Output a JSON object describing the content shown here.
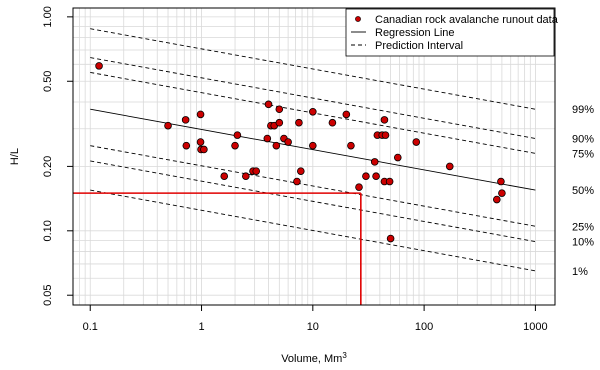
{
  "chart_data": {
    "type": "scatter",
    "title": "",
    "xlabel": "Volume, Mm",
    "xlabel_superscript": "3",
    "ylabel": "H/L",
    "xscale": "log",
    "yscale": "log",
    "xlim": [
      0.07,
      1500
    ],
    "ylim": [
      0.045,
      1.1
    ],
    "x_ticks": [
      0.1,
      1,
      10,
      100,
      1000
    ],
    "x_tick_labels": [
      "0.1",
      "1",
      "10",
      "100",
      "1000"
    ],
    "y_ticks": [
      0.05,
      0.1,
      0.2,
      0.5,
      1.0
    ],
    "y_tick_labels": [
      "0.05",
      "0.10",
      "0.20",
      "0.50",
      "1.00"
    ],
    "grid": true,
    "legend_position": "top-right",
    "legend": [
      {
        "label": "Canadian rock avalanche runout data",
        "marker": "point"
      },
      {
        "label": "Regression Line",
        "marker": "solid"
      },
      {
        "label": "Prediction Interval",
        "marker": "dashed"
      }
    ],
    "series": [
      {
        "name": "Canadian rock avalanche runout data",
        "color": "#cc0000",
        "points": [
          [
            0.12,
            0.59
          ],
          [
            0.5,
            0.31
          ],
          [
            0.72,
            0.33
          ],
          [
            0.73,
            0.25
          ],
          [
            0.98,
            0.35
          ],
          [
            0.98,
            0.26
          ],
          [
            0.99,
            0.24
          ],
          [
            1.05,
            0.24
          ],
          [
            1.6,
            0.18
          ],
          [
            2.0,
            0.25
          ],
          [
            2.1,
            0.28
          ],
          [
            2.5,
            0.18
          ],
          [
            2.9,
            0.19
          ],
          [
            3.1,
            0.19
          ],
          [
            3.9,
            0.27
          ],
          [
            4.0,
            0.39
          ],
          [
            4.2,
            0.31
          ],
          [
            4.5,
            0.31
          ],
          [
            4.7,
            0.25
          ],
          [
            5.0,
            0.32
          ],
          [
            5.0,
            0.37
          ],
          [
            5.5,
            0.27
          ],
          [
            6.0,
            0.26
          ],
          [
            7.2,
            0.17
          ],
          [
            7.5,
            0.32
          ],
          [
            7.8,
            0.19
          ],
          [
            10.0,
            0.25
          ],
          [
            10.0,
            0.36
          ],
          [
            15.0,
            0.32
          ],
          [
            20.0,
            0.35
          ],
          [
            22.0,
            0.25
          ],
          [
            26.0,
            0.16
          ],
          [
            30.0,
            0.18
          ],
          [
            36.0,
            0.21
          ],
          [
            37.0,
            0.18
          ],
          [
            38.0,
            0.28
          ],
          [
            42.0,
            0.28
          ],
          [
            44.0,
            0.33
          ],
          [
            44.0,
            0.17
          ],
          [
            45.0,
            0.28
          ],
          [
            49.0,
            0.17
          ],
          [
            50.0,
            0.092
          ],
          [
            58.0,
            0.22
          ],
          [
            85.0,
            0.26
          ],
          [
            170.0,
            0.2
          ],
          [
            450.0,
            0.14
          ],
          [
            490.0,
            0.17
          ],
          [
            500.0,
            0.15
          ]
        ]
      }
    ],
    "regression_line": {
      "at_x": [
        0.1,
        1000
      ],
      "y": [
        0.37,
        0.155
      ]
    },
    "prediction_intervals": [
      {
        "label": "99%",
        "y_at_x_0_1": 0.88,
        "y_at_x_1000": 0.37
      },
      {
        "label": "90%",
        "y_at_x_0_1": 0.645,
        "y_at_x_1000": 0.27
      },
      {
        "label": "75%",
        "y_at_x_0_1": 0.55,
        "y_at_x_1000": 0.23
      },
      {
        "label": "50%",
        "y_at_x_0_1": null,
        "y_at_x_1000": null
      },
      {
        "label": "25%",
        "y_at_x_0_1": 0.25,
        "y_at_x_1000": 0.105
      },
      {
        "label": "10%",
        "y_at_x_0_1": 0.212,
        "y_at_x_1000": 0.089
      },
      {
        "label": "1%",
        "y_at_x_0_1": 0.155,
        "y_at_x_1000": 0.065
      }
    ],
    "reference_lines": {
      "color": "#e00000",
      "horizontal_y": 0.15,
      "vertical_x": 27
    }
  }
}
